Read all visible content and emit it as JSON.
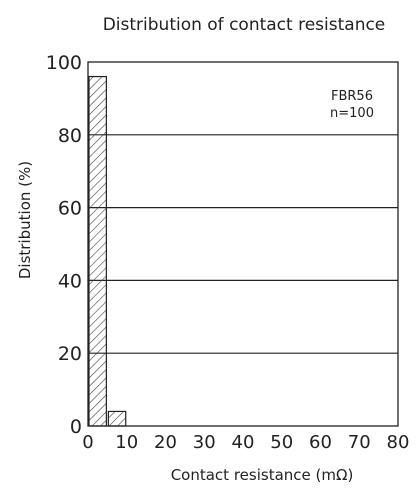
{
  "chart_data": {
    "type": "bar",
    "title": "Distribution of contact resistance",
    "xlabel": "Contact resistance (mΩ)",
    "ylabel": "Distribution (%)",
    "x_ticks": [
      "0",
      "10",
      "20",
      "30",
      "40",
      "50",
      "60",
      "70",
      "80"
    ],
    "y_ticks": [
      "0",
      "20",
      "40",
      "60",
      "80",
      "100"
    ],
    "xlim": [
      0,
      80
    ],
    "ylim": [
      0,
      100
    ],
    "bins": [
      {
        "range": [
          0,
          5
        ],
        "value": 96
      },
      {
        "range": [
          5,
          10
        ],
        "value": 4
      }
    ],
    "annotation": [
      "FBR56",
      "n=100"
    ],
    "grid": "horizontal",
    "bar_fill": "diagonal-hatch"
  },
  "colors": {
    "axis": "#222222",
    "grid": "#222222",
    "bar_stroke": "#222222",
    "hatch": "#444444",
    "background": "#ffffff"
  }
}
